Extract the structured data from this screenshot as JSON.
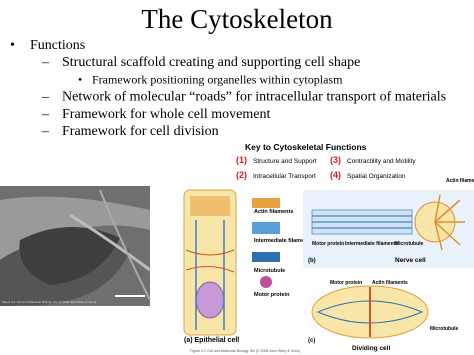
{
  "title": "The Cytoskeleton",
  "bullets": [
    {
      "marker": "•",
      "text": "Functions",
      "level": 1
    },
    {
      "marker": "–",
      "text": "Structural scaffold creating and supporting cell shape",
      "level": 2
    },
    {
      "marker": "•",
      "text": "Framework positioning organelles within cytoplasm",
      "level": 3
    },
    {
      "marker": "–",
      "text": "Network of molecular “roads” for intracellular transport of materials",
      "level": 2
    },
    {
      "marker": "–",
      "text": "Framework for whole cell movement",
      "level": 2
    },
    {
      "marker": "–",
      "text": "Framework for cell division",
      "level": 2
    }
  ],
  "micrograph_caption": "Figure 9-1 Cell and Molecular Biology, 5/e (© 2008 John Wiley & Sons)",
  "figure": {
    "key_title": "Key to Cytoskeletal Functions",
    "key": [
      {
        "num": "(1)",
        "label": "Structure and Support"
      },
      {
        "num": "(2)",
        "label": "Intracellular Transport"
      },
      {
        "num": "(3)",
        "label": "Contractility and Motility"
      },
      {
        "num": "(4)",
        "label": "Spatial Organization"
      }
    ],
    "legend": [
      "Actin filaments",
      "Intermediate filaments",
      "Microtubule",
      "Motor protein"
    ],
    "panel_a": "(a) Epithelial cell",
    "panel_b": "(b)",
    "nerve_cell": "Nerve cell",
    "panel_c": "(c)",
    "dividing_cell": "Dividing cell",
    "b_labels": [
      "Actin filaments",
      "Motor protein",
      "Intermediate filaments",
      "Microtubule"
    ],
    "c_labels": [
      "Motor protein",
      "Actin filaments",
      "Microtubule"
    ],
    "caption": "Figure 9-1 Cell and Molecular Biology, 5/e (© 2008 John Wiley & Sons)"
  }
}
